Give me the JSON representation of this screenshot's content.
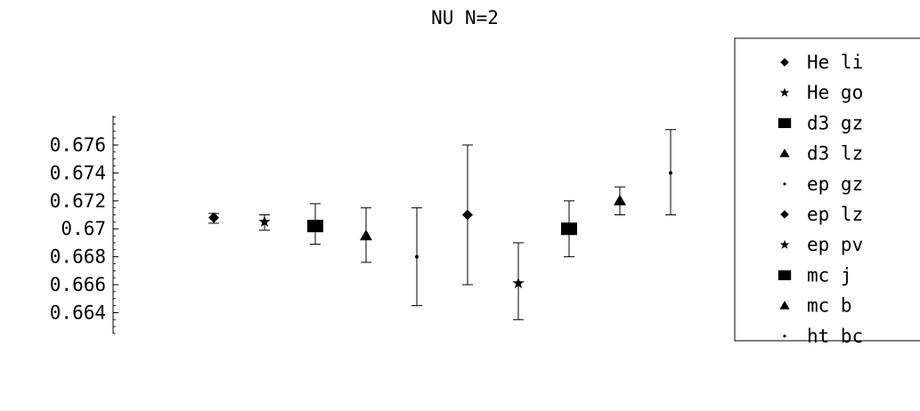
{
  "chart_data": {
    "type": "scatter",
    "title": "NU N=2",
    "xlabel": "",
    "ylabel": "",
    "ylim": [
      0.6625,
      0.6781
    ],
    "y_ticks": [
      0.664,
      0.666,
      0.668,
      0.67,
      0.672,
      0.674,
      0.676
    ],
    "y_tick_labels": [
      "0.664",
      "0.666",
      "0.668",
      "0.67",
      "0.672",
      "0.674",
      "0.676"
    ],
    "grid": false,
    "legend_position": "right",
    "series": [
      {
        "name": "He li",
        "marker": "diamond",
        "x": 1,
        "y": 0.6708,
        "err_low": 0.6704,
        "err_high": 0.6711
      },
      {
        "name": "He go",
        "marker": "star",
        "x": 2,
        "y": 0.6705,
        "err_low": 0.6699,
        "err_high": 0.671
      },
      {
        "name": "d3 gz",
        "marker": "square",
        "x": 3,
        "y": 0.6702,
        "err_low": 0.6689,
        "err_high": 0.6718
      },
      {
        "name": "d3 lz",
        "marker": "triangle",
        "x": 4,
        "y": 0.6695,
        "err_low": 0.6676,
        "err_high": 0.6715
      },
      {
        "name": "ep gz",
        "marker": "dot",
        "x": 5,
        "y": 0.668,
        "err_low": 0.6645,
        "err_high": 0.6715
      },
      {
        "name": "ep lz",
        "marker": "diamond",
        "x": 6,
        "y": 0.671,
        "err_low": 0.666,
        "err_high": 0.676
      },
      {
        "name": "ep pv",
        "marker": "star",
        "x": 7,
        "y": 0.6661,
        "err_low": 0.6635,
        "err_high": 0.669
      },
      {
        "name": "mc j",
        "marker": "square",
        "x": 8,
        "y": 0.67,
        "err_low": 0.668,
        "err_high": 0.672
      },
      {
        "name": "mc b",
        "marker": "triangle",
        "x": 9,
        "y": 0.672,
        "err_low": 0.671,
        "err_high": 0.673
      },
      {
        "name": "ht bc",
        "marker": "dot",
        "x": 10,
        "y": 0.674,
        "err_low": 0.671,
        "err_high": 0.6771
      }
    ]
  }
}
